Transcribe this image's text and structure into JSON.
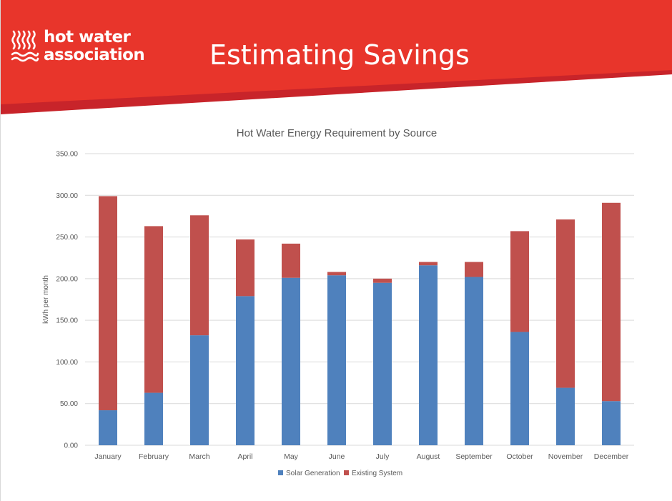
{
  "header": {
    "logo_line1": "hot water",
    "logo_line2": "association",
    "slide_title": "Estimating Savings"
  },
  "colors": {
    "banner_red": "#e8352b",
    "banner_dark_red": "#c8242a",
    "solar": "#4f81bd",
    "existing": "#c0504d",
    "gridline": "#d9d9d9",
    "text": "#595959"
  },
  "chart_data": {
    "type": "bar",
    "stacked": true,
    "title": "Hot Water Energy Requirement by Source",
    "xlabel": "",
    "ylabel": "kWh per month",
    "ylim": [
      0,
      350
    ],
    "ytick_step": 50,
    "ytick_labels": [
      "0.00",
      "50.00",
      "100.00",
      "150.00",
      "200.00",
      "250.00",
      "300.00",
      "350.00"
    ],
    "grid": true,
    "legend_position": "bottom",
    "categories": [
      "January",
      "February",
      "March",
      "April",
      "May",
      "June",
      "July",
      "August",
      "September",
      "October",
      "November",
      "December"
    ],
    "series": [
      {
        "name": "Solar Generation",
        "color": "#4f81bd",
        "values": [
          42,
          63,
          132,
          179,
          201,
          204,
          195,
          216,
          202,
          136,
          69,
          53
        ]
      },
      {
        "name": "Existing System",
        "color": "#c0504d",
        "values": [
          257,
          200,
          144,
          68,
          41,
          4,
          5,
          4,
          18,
          121,
          202,
          238
        ]
      }
    ]
  }
}
